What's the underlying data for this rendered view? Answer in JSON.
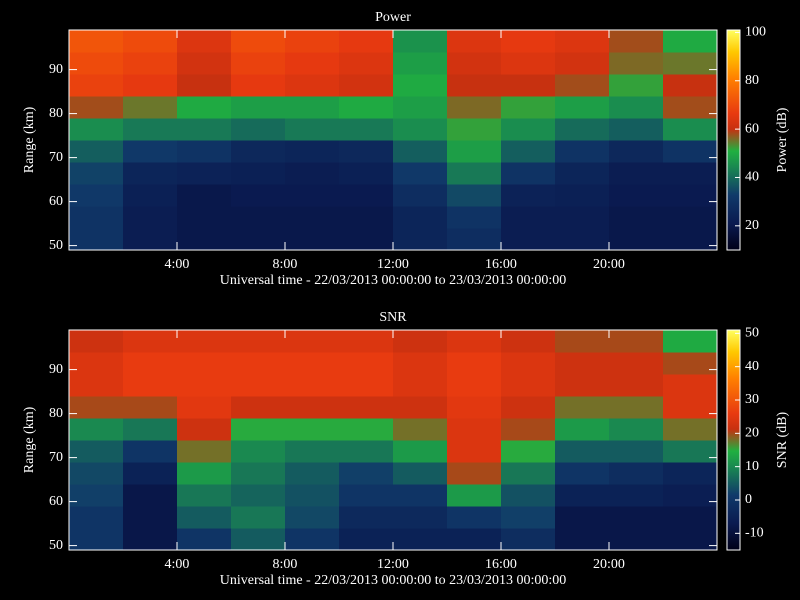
{
  "chart_data": [
    {
      "type": "heatmap",
      "title": "Power",
      "xlabel": "Universal time - 22/03/2013 00:00:00 to 23/03/2013 00:00:00",
      "ylabel": "Range (km)",
      "colorbar_label": "Power (dB)",
      "xlim": [
        0,
        24
      ],
      "ylim": [
        49,
        99
      ],
      "zlim": [
        10,
        101
      ],
      "xticks": [
        {
          "value": 4,
          "label": "4:00"
        },
        {
          "value": 8,
          "label": "8:00"
        },
        {
          "value": 12,
          "label": "12:00"
        },
        {
          "value": 16,
          "label": "16:00"
        },
        {
          "value": 20,
          "label": "20:00"
        }
      ],
      "yticks": [
        50,
        60,
        70,
        80,
        90
      ],
      "zticks": [
        20,
        40,
        60,
        80,
        100
      ],
      "xbins": [
        0,
        2,
        4,
        6,
        8,
        10,
        12,
        14,
        16,
        18,
        20,
        22,
        24
      ],
      "ybins": [
        49,
        54,
        59,
        64,
        69,
        74,
        79,
        84,
        89,
        94,
        99
      ],
      "z": [
        [
          30,
          22,
          20,
          20,
          20,
          20,
          25,
          28,
          22,
          22,
          20,
          20
        ],
        [
          30,
          22,
          20,
          20,
          20,
          20,
          25,
          30,
          22,
          22,
          20,
          20
        ],
        [
          32,
          23,
          20,
          21,
          21,
          21,
          28,
          35,
          24,
          23,
          21,
          21
        ],
        [
          34,
          25,
          24,
          23,
          22,
          23,
          32,
          42,
          30,
          25,
          22,
          22
        ],
        [
          38,
          32,
          30,
          26,
          25,
          26,
          38,
          48,
          38,
          30,
          26,
          30
        ],
        [
          45,
          42,
          42,
          40,
          42,
          42,
          45,
          52,
          45,
          40,
          38,
          45
        ],
        [
          58,
          55,
          50,
          48,
          48,
          50,
          48,
          56,
          52,
          48,
          45,
          58
        ],
        [
          68,
          66,
          60,
          66,
          64,
          62,
          50,
          60,
          60,
          58,
          52,
          60
        ],
        [
          70,
          68,
          62,
          68,
          66,
          64,
          48,
          62,
          64,
          62,
          56,
          55
        ],
        [
          72,
          70,
          64,
          70,
          68,
          66,
          46,
          64,
          66,
          64,
          58,
          50
        ]
      ],
      "colorscale": [
        [
          0,
          "#000018"
        ],
        [
          0.12,
          "#0a1a50"
        ],
        [
          0.25,
          "#103a6a"
        ],
        [
          0.38,
          "#1a8a50"
        ],
        [
          0.45,
          "#20b040"
        ],
        [
          0.55,
          "#c83010"
        ],
        [
          0.62,
          "#e83a10"
        ],
        [
          0.78,
          "#ff8000"
        ],
        [
          0.9,
          "#ffc800"
        ],
        [
          1,
          "#ffff60"
        ]
      ]
    },
    {
      "type": "heatmap",
      "title": "SNR",
      "xlabel": "Universal time - 22/03/2013 00:00:00 to 23/03/2013 00:00:00",
      "ylabel": "Range (km)",
      "colorbar_label": "SNR (dB)",
      "xlim": [
        0,
        24
      ],
      "ylim": [
        49,
        99
      ],
      "zlim": [
        -15,
        51
      ],
      "xticks": [
        {
          "value": 4,
          "label": "4:00"
        },
        {
          "value": 8,
          "label": "8:00"
        },
        {
          "value": 12,
          "label": "12:00"
        },
        {
          "value": 16,
          "label": "16:00"
        },
        {
          "value": 20,
          "label": "20:00"
        }
      ],
      "yticks": [
        50,
        60,
        70,
        80,
        90
      ],
      "zticks": [
        -10,
        0,
        10,
        20,
        30,
        40,
        50
      ],
      "xbins": [
        0,
        2,
        4,
        6,
        8,
        10,
        12,
        14,
        16,
        18,
        20,
        22,
        24
      ],
      "ybins": [
        49,
        54,
        59,
        64,
        69,
        74,
        79,
        84,
        89,
        94,
        99
      ],
      "z": [
        [
          0,
          -8,
          0,
          5,
          0,
          -5,
          -5,
          -5,
          -2,
          -8,
          -8,
          -8
        ],
        [
          0,
          -8,
          5,
          8,
          3,
          -3,
          -3,
          0,
          2,
          -8,
          -8,
          -8
        ],
        [
          2,
          -8,
          8,
          6,
          4,
          0,
          0,
          12,
          4,
          -5,
          -5,
          -6
        ],
        [
          3,
          -5,
          12,
          8,
          5,
          2,
          5,
          20,
          8,
          0,
          -2,
          -4
        ],
        [
          5,
          0,
          18,
          10,
          8,
          8,
          12,
          24,
          15,
          5,
          5,
          8
        ],
        [
          10,
          8,
          22,
          15,
          15,
          15,
          18,
          24,
          20,
          12,
          10,
          18
        ],
        [
          20,
          20,
          25,
          22,
          22,
          22,
          22,
          25,
          22,
          18,
          18,
          24
        ],
        [
          24,
          26,
          26,
          26,
          26,
          26,
          24,
          26,
          24,
          22,
          22,
          24
        ],
        [
          24,
          26,
          26,
          26,
          26,
          26,
          24,
          26,
          24,
          22,
          22,
          20
        ],
        [
          22,
          24,
          24,
          24,
          24,
          24,
          22,
          24,
          22,
          20,
          20,
          14
        ]
      ],
      "colorscale": [
        [
          0,
          "#000018"
        ],
        [
          0.12,
          "#0a1a50"
        ],
        [
          0.25,
          "#103a6a"
        ],
        [
          0.38,
          "#1a8a50"
        ],
        [
          0.45,
          "#20b040"
        ],
        [
          0.55,
          "#c83010"
        ],
        [
          0.62,
          "#e83a10"
        ],
        [
          0.78,
          "#ff8000"
        ],
        [
          0.9,
          "#ffc800"
        ],
        [
          1,
          "#ffff60"
        ]
      ]
    }
  ]
}
